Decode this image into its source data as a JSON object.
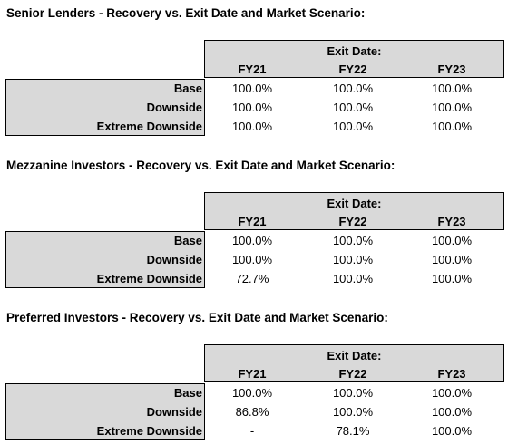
{
  "tables": [
    {
      "title": "Senior Lenders - Recovery vs. Exit Date and Market Scenario:",
      "header": "Exit Date:",
      "columns": [
        "FY21",
        "FY22",
        "FY23"
      ],
      "rows": [
        {
          "label": "Base",
          "values": [
            "100.0%",
            "100.0%",
            "100.0%"
          ]
        },
        {
          "label": "Downside",
          "values": [
            "100.0%",
            "100.0%",
            "100.0%"
          ]
        },
        {
          "label": "Extreme Downside",
          "values": [
            "100.0%",
            "100.0%",
            "100.0%"
          ]
        }
      ]
    },
    {
      "title": "Mezzanine Investors - Recovery vs. Exit Date and Market Scenario:",
      "header": "Exit Date:",
      "columns": [
        "FY21",
        "FY22",
        "FY23"
      ],
      "rows": [
        {
          "label": "Base",
          "values": [
            "100.0%",
            "100.0%",
            "100.0%"
          ]
        },
        {
          "label": "Downside",
          "values": [
            "100.0%",
            "100.0%",
            "100.0%"
          ]
        },
        {
          "label": "Extreme Downside",
          "values": [
            "72.7%",
            "100.0%",
            "100.0%"
          ]
        }
      ]
    },
    {
      "title": "Preferred Investors - Recovery vs. Exit Date and Market Scenario:",
      "header": "Exit Date:",
      "columns": [
        "FY21",
        "FY22",
        "FY23"
      ],
      "rows": [
        {
          "label": "Base",
          "values": [
            "100.0%",
            "100.0%",
            "100.0%"
          ]
        },
        {
          "label": "Downside",
          "values": [
            "86.8%",
            "100.0%",
            "100.0%"
          ]
        },
        {
          "label": "Extreme Downside",
          "values": [
            "-",
            "78.1%",
            "100.0%"
          ]
        }
      ]
    }
  ]
}
